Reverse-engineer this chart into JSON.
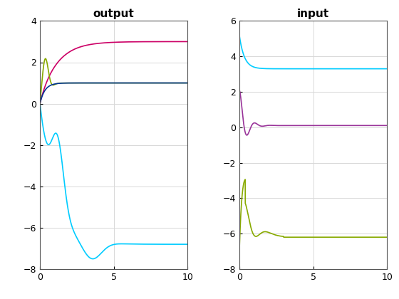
{
  "title_left": "output",
  "title_right": "input",
  "xlim": [
    0,
    10
  ],
  "ylim_output": [
    -8,
    4
  ],
  "ylim_input": [
    -8,
    6
  ],
  "yticks_output": [
    -8,
    -6,
    -4,
    -2,
    0,
    2,
    4
  ],
  "yticks_input": [
    -8,
    -6,
    -4,
    -2,
    0,
    2,
    4,
    6
  ],
  "xticks": [
    0,
    5,
    10
  ],
  "colors_output": {
    "crimson": "#cc0066",
    "olive": "#88aa00",
    "blue": "#003399",
    "cyan": "#00ccff"
  },
  "colors_input": {
    "cyan": "#00ccff",
    "purple": "#993399",
    "olive": "#88aa00"
  },
  "background_color": "#ffffff",
  "grid_color": "#d8d8d8",
  "title_fontsize": 11,
  "tick_fontsize": 9,
  "linewidth": 1.2
}
